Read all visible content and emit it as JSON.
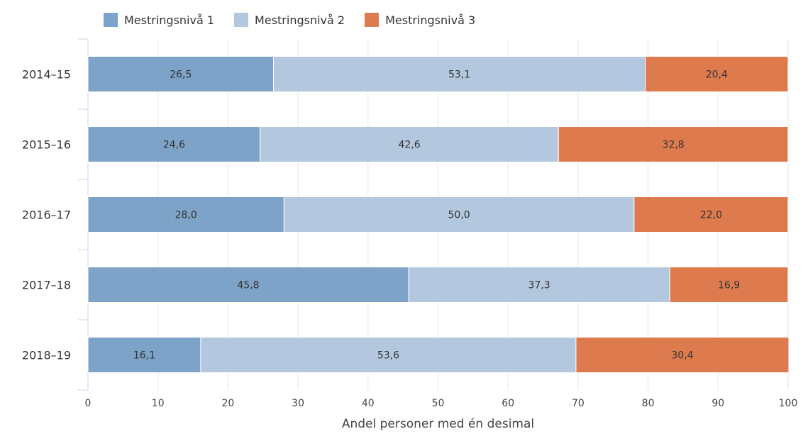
{
  "chart_data": {
    "type": "bar",
    "orientation": "horizontal",
    "stacked": true,
    "categories": [
      "2014–15",
      "2015–16",
      "2016–17",
      "2017–18",
      "2018–19"
    ],
    "series": [
      {
        "name": "Mestringsnivå 1",
        "color": "#7ea3c9",
        "values": [
          26.5,
          24.6,
          28.0,
          45.8,
          16.1
        ],
        "labels": [
          "26,5",
          "24,6",
          "28,0",
          "45,8",
          "16,1"
        ]
      },
      {
        "name": "Mestringsnivå 2",
        "color": "#b3c8de",
        "values": [
          53.1,
          42.6,
          50.0,
          37.3,
          53.6
        ],
        "labels": [
          "53,1",
          "42,6",
          "50,0",
          "37,3",
          "53,6"
        ]
      },
      {
        "name": "Mestringsnivå 3",
        "color": "#de7b4e",
        "values": [
          20.4,
          32.8,
          22.0,
          16.9,
          30.4
        ],
        "labels": [
          "20,4",
          "32,8",
          "22,0",
          "16,9",
          "30,4"
        ]
      }
    ],
    "xlabel": "Andel personer med én desimal",
    "xlim": [
      0,
      100
    ],
    "xticks": [
      "0",
      "10",
      "20",
      "30",
      "40",
      "50",
      "60",
      "70",
      "80",
      "90",
      "100"
    ],
    "grid": true,
    "legend_position": "top-left"
  }
}
